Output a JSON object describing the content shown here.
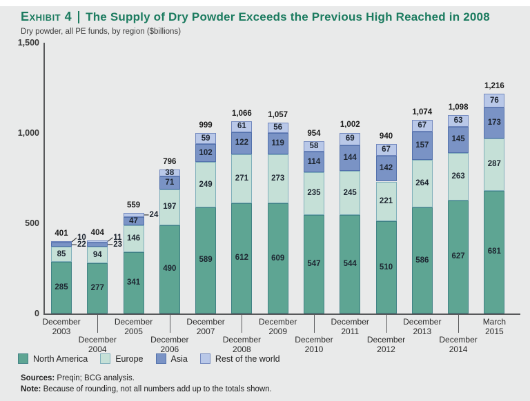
{
  "header": {
    "exhibit_label": "Exhibit 4",
    "title": "The Supply of Dry Powder Exceeds the Previous High Reached in 2008",
    "subtitle": "Dry powder, all PE funds, by region ($billions)"
  },
  "colors": {
    "background": "#E9EAEA",
    "title_green": "#1B7B5F",
    "axis": "#58595B",
    "north_america_fill": "#5EA593",
    "north_america_border": "#3F8184",
    "europe_fill": "#C5E0D7",
    "europe_border": "#7FAFBA",
    "asia_fill": "#7A93C5",
    "asia_border": "#5170AB",
    "rest_of_world_fill": "#B9C8E8",
    "rest_of_world_border": "#7288BE"
  },
  "chart_data": {
    "type": "bar",
    "stacked": true,
    "grid": false,
    "legend_position": "bottom",
    "ylim": [
      0,
      1500
    ],
    "y_ticks": [
      {
        "label": "0",
        "value": 0
      },
      {
        "label": "500",
        "value": 500
      },
      {
        "label": "1,000",
        "value": 1000
      },
      {
        "label": "1,500",
        "value": 1500
      }
    ],
    "categories": [
      {
        "month": "December",
        "year": "2003"
      },
      {
        "month": "December",
        "year": "2004"
      },
      {
        "month": "December",
        "year": "2005"
      },
      {
        "month": "December",
        "year": "2006"
      },
      {
        "month": "December",
        "year": "2007"
      },
      {
        "month": "December",
        "year": "2008"
      },
      {
        "month": "December",
        "year": "2009"
      },
      {
        "month": "December",
        "year": "2010"
      },
      {
        "month": "December",
        "year": "2011"
      },
      {
        "month": "December",
        "year": "2012"
      },
      {
        "month": "December",
        "year": "2013"
      },
      {
        "month": "December",
        "year": "2014"
      },
      {
        "month": "March",
        "year": "2015"
      }
    ],
    "series": [
      {
        "name": "North America",
        "fill": "#5EA593",
        "border": "#3F8184",
        "values": [
          285,
          277,
          341,
          490,
          589,
          612,
          609,
          547,
          544,
          510,
          586,
          627,
          681
        ]
      },
      {
        "name": "Europe",
        "fill": "#C5E0D7",
        "border": "#7FAFBA",
        "values": [
          85,
          94,
          146,
          197,
          249,
          271,
          273,
          235,
          245,
          221,
          264,
          263,
          287
        ]
      },
      {
        "name": "Asia",
        "fill": "#7A93C5",
        "border": "#5170AB",
        "values": [
          22,
          23,
          47,
          71,
          102,
          122,
          119,
          114,
          144,
          142,
          157,
          145,
          173
        ]
      },
      {
        "name": "Rest of the world",
        "fill": "#B9C8E8",
        "border": "#7288BE",
        "values": [
          10,
          11,
          24,
          38,
          59,
          61,
          56,
          58,
          69,
          67,
          67,
          63,
          76
        ]
      }
    ],
    "totals": [
      "401",
      "404",
      "559",
      "796",
      "999",
      "1,066",
      "1,057",
      "954",
      "1,002",
      "940",
      "1,074",
      "1,098",
      "1,216"
    ]
  },
  "footer": {
    "sources_label": "Sources:",
    "sources_text": "Preqin; BCG analysis.",
    "note_label": "Note:",
    "note_text": "Because of rounding, not all numbers add up to the totals shown."
  }
}
